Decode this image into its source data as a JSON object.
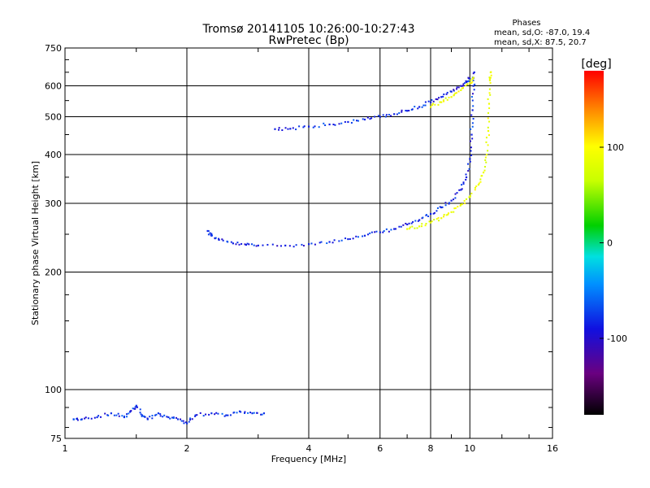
{
  "chart_data": {
    "type": "scatter",
    "title": "Tromsø 20141105 10:26:00-10:27:43",
    "subtitle": "RwPretec (Bp)",
    "xlabel": "Frequency [MHz]",
    "ylabel": "Stationary phase Virtual Height [km]",
    "xscale": "log",
    "yscale": "log",
    "xlim": [
      1,
      16
    ],
    "ylim": [
      75,
      750
    ],
    "grid": true,
    "xticks": [
      1,
      2,
      4,
      6,
      8,
      10,
      16
    ],
    "xtick_labels": [
      "1",
      "2",
      "4",
      "6",
      "8",
      "10",
      "16"
    ],
    "yticks": [
      75,
      100,
      200,
      300,
      400,
      500,
      600,
      750
    ],
    "ytick_labels": [
      "75",
      "100",
      "200",
      "300",
      "400",
      "500",
      "600",
      "750"
    ],
    "stats": {
      "heading": "Phases",
      "line_o": "mean, sd,O: -87.0, 19.4",
      "line_x": "mean, sd,X: 87.5, 20.7"
    },
    "colorbar": {
      "label": "[deg]",
      "range": [
        -180,
        180
      ],
      "ticks": [
        100,
        0,
        -100
      ],
      "tick_labels": [
        "100",
        "0",
        "-100"
      ],
      "colormap": "rainbow: black → purple → blue → cyan → green → yellow → orange → red"
    },
    "series": [
      {
        "trace": "O-mode lower trace",
        "phase_deg": -95,
        "points": [
          [
            2.25,
            255
          ],
          [
            2.3,
            248
          ],
          [
            2.4,
            242
          ],
          [
            2.6,
            237
          ],
          [
            2.8,
            235
          ],
          [
            3.0,
            234
          ],
          [
            3.5,
            234
          ],
          [
            4.0,
            236
          ],
          [
            4.5,
            239
          ],
          [
            5.0,
            243
          ],
          [
            5.5,
            248
          ],
          [
            6.0,
            253
          ],
          [
            6.5,
            258
          ],
          [
            7.0,
            265
          ],
          [
            7.5,
            272
          ],
          [
            8.0,
            282
          ],
          [
            8.5,
            293
          ],
          [
            9.0,
            305
          ],
          [
            9.5,
            325
          ],
          [
            9.8,
            350
          ],
          [
            10.0,
            390
          ],
          [
            10.1,
            450
          ],
          [
            10.15,
            520
          ],
          [
            10.2,
            600
          ],
          [
            10.25,
            650
          ]
        ]
      },
      {
        "trace": "X-mode lower trace",
        "phase_deg": 87,
        "points": [
          [
            7.0,
            258
          ],
          [
            7.5,
            262
          ],
          [
            8.0,
            268
          ],
          [
            8.5,
            275
          ],
          [
            9.0,
            285
          ],
          [
            9.5,
            298
          ],
          [
            10.0,
            312
          ],
          [
            10.5,
            335
          ],
          [
            10.8,
            360
          ],
          [
            11.0,
            400
          ],
          [
            11.1,
            460
          ],
          [
            11.15,
            540
          ],
          [
            11.2,
            620
          ],
          [
            11.25,
            650
          ]
        ]
      },
      {
        "trace": "O-mode upper trace",
        "phase_deg": -95,
        "points": [
          [
            3.3,
            465
          ],
          [
            3.6,
            466
          ],
          [
            4.0,
            472
          ],
          [
            4.5,
            478
          ],
          [
            5.0,
            485
          ],
          [
            5.5,
            492
          ],
          [
            6.0,
            500
          ],
          [
            6.5,
            508
          ],
          [
            7.0,
            518
          ],
          [
            7.5,
            530
          ],
          [
            8.0,
            545
          ],
          [
            8.5,
            562
          ],
          [
            9.0,
            580
          ],
          [
            9.5,
            600
          ],
          [
            9.8,
            615
          ],
          [
            10.0,
            625
          ]
        ]
      },
      {
        "trace": "X-mode upper trace",
        "phase_deg": 88,
        "points": [
          [
            8.0,
            530
          ],
          [
            8.5,
            545
          ],
          [
            9.0,
            562
          ],
          [
            9.5,
            585
          ],
          [
            10.0,
            610
          ],
          [
            10.2,
            630
          ]
        ]
      },
      {
        "trace": "E-region echoes",
        "phase_deg": -90,
        "points": [
          [
            1.05,
            84
          ],
          [
            1.1,
            84
          ],
          [
            1.2,
            85
          ],
          [
            1.3,
            87
          ],
          [
            1.4,
            85
          ],
          [
            1.45,
            88
          ],
          [
            1.5,
            91
          ],
          [
            1.55,
            86
          ],
          [
            1.6,
            84
          ],
          [
            1.7,
            87
          ],
          [
            1.8,
            85
          ],
          [
            1.9,
            84
          ],
          [
            2.0,
            82
          ],
          [
            2.1,
            86
          ],
          [
            2.3,
            87
          ],
          [
            2.5,
            86
          ],
          [
            2.7,
            88
          ],
          [
            2.9,
            87
          ],
          [
            3.1,
            87
          ]
        ]
      }
    ]
  }
}
